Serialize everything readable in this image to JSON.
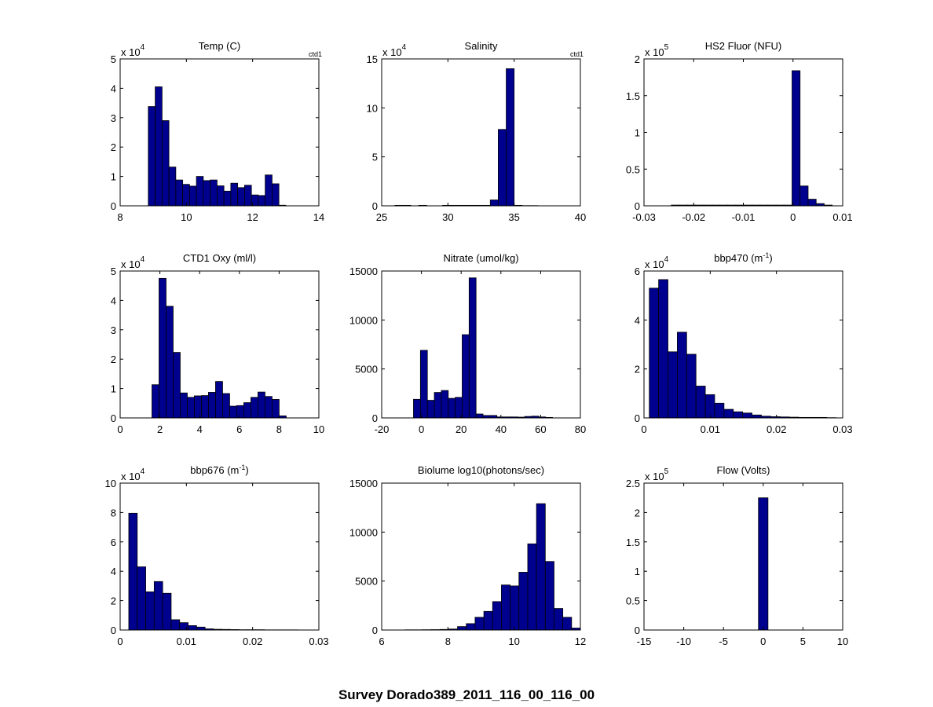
{
  "figure": {
    "suptitle": "Survey Dorado389_2011_116_00_116_00",
    "bar_color": "#00008f",
    "edge_color": "#000000"
  },
  "chart_data": [
    {
      "type": "bar",
      "title": "Temp (C)",
      "corner_label": "ctd1",
      "exponent_label": {
        "base": "x 10",
        "exp": "4"
      },
      "xlim": [
        8,
        14
      ],
      "ylim": [
        0,
        5
      ],
      "xticks": [
        8,
        10,
        12,
        14
      ],
      "yticks": [
        0,
        1,
        2,
        3,
        4,
        5
      ],
      "xticklabels": [
        "8",
        "10",
        "12",
        "14"
      ],
      "yticklabels": [
        "0",
        "1",
        "2",
        "3",
        "4",
        "5"
      ],
      "bin_start": 8.85,
      "bin_width": 0.2076,
      "values": [
        3.38,
        4.05,
        2.9,
        1.32,
        0.88,
        0.73,
        0.67,
        1.0,
        0.86,
        0.88,
        0.68,
        0.5,
        0.77,
        0.62,
        0.7,
        0.37,
        0.35,
        1.05,
        0.75,
        0.02,
        0.0,
        0.0
      ]
    },
    {
      "type": "bar",
      "title": "Salinity",
      "corner_label": "ctd1",
      "exponent_label": {
        "base": "x 10",
        "exp": "4"
      },
      "xlim": [
        25,
        40
      ],
      "ylim": [
        0,
        15
      ],
      "xticks": [
        25,
        30,
        35,
        40
      ],
      "yticks": [
        0,
        5,
        10,
        15
      ],
      "xticklabels": [
        "25",
        "30",
        "35",
        "40"
      ],
      "yticklabels": [
        "0",
        "5",
        "10",
        "15"
      ],
      "bin_start": 26.0,
      "bin_width": 0.6,
      "values": [
        0.05,
        0.05,
        0.0,
        0.05,
        0.0,
        0.0,
        0.05,
        0.05,
        0.05,
        0.05,
        0.05,
        0.05,
        0.6,
        7.8,
        14.0,
        0.05,
        0.02,
        0.02,
        0.0,
        0.0
      ]
    },
    {
      "type": "bar",
      "title": "HS2 Fluor (NFU)",
      "exponent_label": {
        "base": "x 10",
        "exp": "5"
      },
      "xlim": [
        -0.03,
        0.01
      ],
      "ylim": [
        0,
        2
      ],
      "xticks": [
        -0.03,
        -0.02,
        -0.01,
        0,
        0.01
      ],
      "yticks": [
        0,
        0.5,
        1,
        1.5,
        2
      ],
      "xticklabels": [
        "-0.03",
        "-0.02",
        "-0.01",
        "0",
        "0.01"
      ],
      "yticklabels": [
        "0",
        "0.5",
        "1",
        "1.5",
        "2"
      ],
      "bin_start": -0.0245,
      "bin_width": 0.00162,
      "values": [
        0.01,
        0.01,
        0.01,
        0.01,
        0.01,
        0.01,
        0.01,
        0.01,
        0.01,
        0.01,
        0.01,
        0.01,
        0.01,
        0.01,
        0.01,
        1.84,
        0.27,
        0.09,
        0.03,
        0.01
      ]
    },
    {
      "type": "bar",
      "title": "CTD1 Oxy (ml/l)",
      "exponent_label": {
        "base": "x 10",
        "exp": "4"
      },
      "xlim": [
        0,
        10
      ],
      "ylim": [
        0,
        5
      ],
      "xticks": [
        0,
        2,
        4,
        6,
        8,
        10
      ],
      "yticks": [
        0,
        1,
        2,
        3,
        4,
        5
      ],
      "xticklabels": [
        "0",
        "2",
        "4",
        "6",
        "8",
        "10"
      ],
      "yticklabels": [
        "0",
        "1",
        "2",
        "3",
        "4",
        "5"
      ],
      "bin_start": 1.6,
      "bin_width": 0.3556,
      "values": [
        1.13,
        4.75,
        3.8,
        2.23,
        0.85,
        0.7,
        0.75,
        0.76,
        0.87,
        1.24,
        0.83,
        0.4,
        0.42,
        0.52,
        0.7,
        0.88,
        0.73,
        0.63,
        0.07,
        0.0
      ]
    },
    {
      "type": "bar",
      "title": "Nitrate (umol/kg)",
      "xlim": [
        -20,
        80
      ],
      "ylim": [
        0,
        15000
      ],
      "xticks": [
        -20,
        0,
        20,
        40,
        60,
        80
      ],
      "yticks": [
        0,
        5000,
        10000,
        15000
      ],
      "xticklabels": [
        "-20",
        "0",
        "20",
        "40",
        "60",
        "80"
      ],
      "yticklabels": [
        "0",
        "5000",
        "10000",
        "15000"
      ],
      "bin_start": -4.0,
      "bin_width": 3.5,
      "values": [
        1900,
        6900,
        1800,
        2600,
        2800,
        2000,
        2100,
        8500,
        14300,
        400,
        250,
        250,
        100,
        100,
        100,
        80,
        150,
        180,
        100,
        50
      ]
    },
    {
      "type": "bar",
      "title": "bbp470 (m",
      "title_sup": "-1",
      "title_end": ")",
      "exponent_label": {
        "base": "x 10",
        "exp": "4"
      },
      "xlim": [
        0,
        0.03
      ],
      "ylim": [
        0,
        6
      ],
      "xticks": [
        0,
        0.01,
        0.02,
        0.03
      ],
      "yticks": [
        0,
        2,
        4,
        6
      ],
      "xticklabels": [
        "0",
        "0.01",
        "0.02",
        "0.03"
      ],
      "yticklabels": [
        "0",
        "2",
        "4",
        "6"
      ],
      "bin_start": 0.0008,
      "bin_width": 0.00141,
      "values": [
        5.3,
        5.65,
        2.7,
        3.5,
        2.6,
        1.3,
        0.95,
        0.6,
        0.35,
        0.25,
        0.2,
        0.12,
        0.07,
        0.05,
        0.04,
        0.03,
        0.02,
        0.02,
        0.02,
        0.01
      ]
    },
    {
      "type": "bar",
      "title": "bbp676 (m",
      "title_sup": "-1",
      "title_end": ")",
      "exponent_label": {
        "base": "x 10",
        "exp": "4"
      },
      "xlim": [
        0,
        0.03
      ],
      "ylim": [
        0,
        10
      ],
      "xticks": [
        0,
        0.01,
        0.02,
        0.03
      ],
      "yticks": [
        0,
        2,
        4,
        6,
        8,
        10
      ],
      "xticklabels": [
        "0",
        "0.01",
        "0.02",
        "0.03"
      ],
      "yticklabels": [
        "0",
        "2",
        "4",
        "6",
        "8",
        "10"
      ],
      "bin_start": 0.0013,
      "bin_width": 0.00128,
      "values": [
        7.95,
        4.3,
        2.6,
        3.3,
        2.5,
        0.7,
        0.5,
        0.3,
        0.2,
        0.08,
        0.05,
        0.04,
        0.03,
        0.02,
        0.02,
        0.02,
        0.01,
        0.01,
        0.01,
        0.01
      ]
    },
    {
      "type": "bar",
      "title": "Biolume log10(photons/sec)",
      "xlim": [
        6,
        12
      ],
      "ylim": [
        0,
        15000
      ],
      "xticks": [
        6,
        8,
        10,
        12
      ],
      "yticks": [
        0,
        5000,
        10000,
        15000
      ],
      "xticklabels": [
        "6",
        "8",
        "10",
        "12"
      ],
      "yticklabels": [
        "0",
        "5000",
        "10000",
        "15000"
      ],
      "bin_start": 6.7,
      "bin_width": 0.265,
      "values": [
        20,
        20,
        30,
        40,
        60,
        100,
        350,
        650,
        1300,
        1900,
        2900,
        4600,
        4500,
        5900,
        8800,
        12900,
        7000,
        2200,
        1300,
        200
      ]
    },
    {
      "type": "bar",
      "title": "Flow (Volts)",
      "exponent_label": {
        "base": "x 10",
        "exp": "5"
      },
      "xlim": [
        -15,
        10
      ],
      "ylim": [
        0,
        2.5
      ],
      "xticks": [
        -15,
        -10,
        -5,
        0,
        5,
        10
      ],
      "yticks": [
        0,
        0.5,
        1,
        1.5,
        2,
        2.5
      ],
      "xticklabels": [
        "-15",
        "-10",
        "-5",
        "0",
        "5",
        "10"
      ],
      "yticklabels": [
        "0",
        "0.5",
        "1",
        "1.5",
        "2",
        "2.5"
      ],
      "bin_start": -0.6,
      "bin_width": 1.2,
      "values": [
        2.25
      ]
    }
  ]
}
